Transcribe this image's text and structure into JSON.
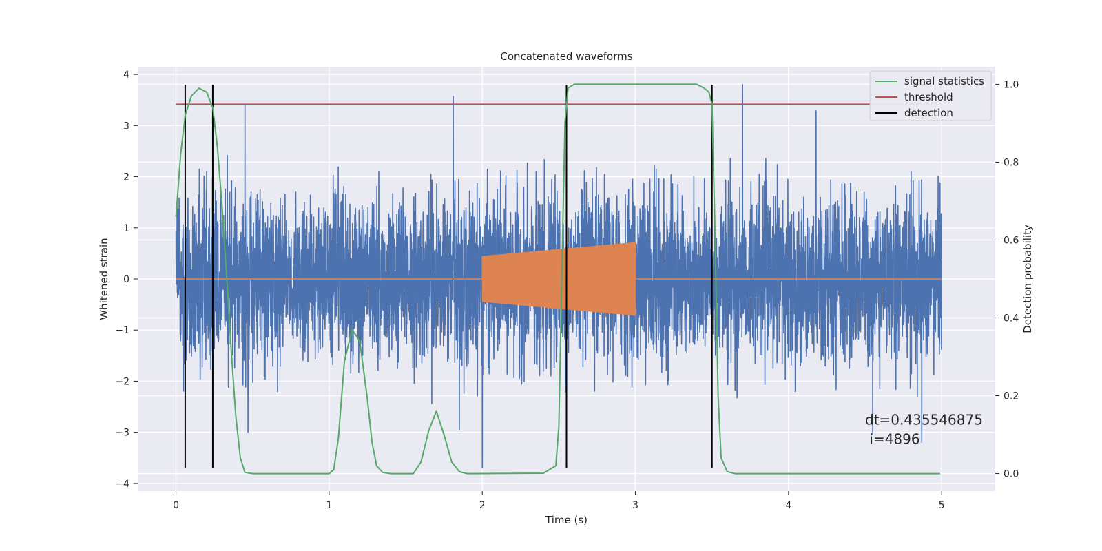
{
  "chart_data": {
    "type": "line",
    "title": "Concatenated waveforms",
    "xlabel": "Time (s)",
    "ylabel_left": "Whitened strain",
    "ylabel_right": "Detection probability",
    "xlim": [
      -0.25,
      5.35
    ],
    "ylim_left": [
      -4.15,
      4.15
    ],
    "ylim_right": [
      -0.045,
      1.045
    ],
    "xticks": [
      0,
      1,
      2,
      3,
      4,
      5
    ],
    "yticks_left": [
      -4,
      -3,
      -2,
      -1,
      0,
      1,
      2,
      3,
      4
    ],
    "yticks_right": [
      0.0,
      0.2,
      0.4,
      0.6,
      0.8,
      1.0
    ],
    "xtick_labels": [
      "0",
      "1",
      "2",
      "3",
      "4",
      "5"
    ],
    "ytick_labels_left": [
      "−4",
      "−3",
      "−2",
      "−1",
      "0",
      "1",
      "2",
      "3",
      "4"
    ],
    "ytick_labels_right": [
      "0.0",
      "0.2",
      "0.4",
      "0.6",
      "0.8",
      "1.0"
    ],
    "grid": true,
    "legend_position": "top-right",
    "legend": [
      "signal statistics",
      "threshold",
      "detection"
    ],
    "series": [
      {
        "name": "whitened strain noise",
        "color": "#4c72b0",
        "axis": "left",
        "x_range": [
          0,
          5
        ],
        "envelope": 2.3,
        "peaks": [
          [
            0.45,
            3.42
          ],
          [
            1.81,
            3.57
          ],
          [
            3.7,
            3.8
          ],
          [
            4.18,
            3.29
          ],
          [
            0.2,
            2.1
          ],
          [
            0.47,
            -3.0
          ],
          [
            1.85,
            -2.95
          ],
          [
            2.0,
            -3.7
          ],
          [
            4.55,
            -3.05
          ],
          [
            4.87,
            -3.2
          ]
        ]
      },
      {
        "name": "injected waveform",
        "color": "#dd8452",
        "axis": "left",
        "segment": [
          2.0,
          3.0
        ],
        "amplitude_start": 0.45,
        "amplitude_end": 0.72,
        "baseline": 0
      },
      {
        "name": "signal statistics",
        "color": "#55a868",
        "axis": "right",
        "x": [
          0,
          0.03,
          0.06,
          0.1,
          0.15,
          0.2,
          0.24,
          0.27,
          0.3,
          0.33,
          0.36,
          0.39,
          0.42,
          0.45,
          0.5,
          1.0,
          1.03,
          1.06,
          1.1,
          1.15,
          1.2,
          1.25,
          1.28,
          1.31,
          1.35,
          1.4,
          1.45,
          1.55,
          1.6,
          1.65,
          1.7,
          1.75,
          1.8,
          1.85,
          1.9,
          2.4,
          2.48,
          2.5,
          2.52,
          2.54,
          2.56,
          2.6,
          2.65,
          3.4,
          3.45,
          3.48,
          3.5,
          3.52,
          3.54,
          3.56,
          3.6,
          3.65,
          4.99
        ],
        "y": [
          0.66,
          0.82,
          0.92,
          0.97,
          0.99,
          0.98,
          0.94,
          0.84,
          0.69,
          0.51,
          0.32,
          0.15,
          0.04,
          0.003,
          0.0,
          0.0,
          0.01,
          0.09,
          0.29,
          0.37,
          0.34,
          0.19,
          0.08,
          0.02,
          0.003,
          0.0,
          0.0,
          0.0,
          0.03,
          0.11,
          0.16,
          0.1,
          0.03,
          0.005,
          0.0,
          0.001,
          0.02,
          0.12,
          0.52,
          0.9,
          0.99,
          1.0,
          1.0,
          1.0,
          0.99,
          0.98,
          0.95,
          0.62,
          0.2,
          0.04,
          0.005,
          0.0,
          0.0
        ],
        "plain": true
      },
      {
        "name": "threshold",
        "color": "#c44e52",
        "axis": "left",
        "x": [
          0,
          5
        ],
        "y": [
          3.42,
          3.42
        ],
        "plain": true
      },
      {
        "name": "detection",
        "color": "#000000",
        "axis": "left",
        "x": [
          0.06,
          0.24,
          2.55,
          3.5
        ],
        "y_range": [
          -3.7,
          3.8
        ],
        "plain": true
      }
    ],
    "annotation": {
      "line1": "dt=0.435546875",
      "line2": " i=4896",
      "x": 4.5,
      "y": -2.85
    }
  }
}
